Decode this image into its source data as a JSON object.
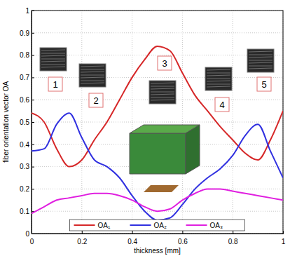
{
  "chart_data": {
    "type": "line",
    "x_label": "thickness [mm]",
    "y_label": "fiber orientation vector OA",
    "x": [
      0,
      0.05,
      0.1,
      0.15,
      0.2,
      0.25,
      0.3,
      0.35,
      0.4,
      0.45,
      0.5,
      0.55,
      0.6,
      0.65,
      0.7,
      0.75,
      0.8,
      0.85,
      0.9,
      0.95,
      1
    ],
    "series": [
      {
        "name": "OA₁",
        "color": "#d62728",
        "values": [
          0.54,
          0.5,
          0.38,
          0.3,
          0.33,
          0.42,
          0.5,
          0.6,
          0.7,
          0.78,
          0.84,
          0.82,
          0.72,
          0.62,
          0.55,
          0.48,
          0.42,
          0.36,
          0.33,
          0.42,
          0.55
        ]
      },
      {
        "name": "OA₂",
        "color": "#3030e0",
        "values": [
          0.37,
          0.38,
          0.49,
          0.54,
          0.43,
          0.33,
          0.3,
          0.25,
          0.17,
          0.1,
          0.06,
          0.07,
          0.13,
          0.2,
          0.25,
          0.29,
          0.35,
          0.44,
          0.49,
          0.37,
          0.25
        ]
      },
      {
        "name": "OA₃",
        "color": "#e020e0",
        "values": [
          0.09,
          0.12,
          0.15,
          0.16,
          0.17,
          0.18,
          0.18,
          0.17,
          0.15,
          0.12,
          0.1,
          0.11,
          0.15,
          0.18,
          0.2,
          0.2,
          0.19,
          0.18,
          0.17,
          0.16,
          0.15
        ]
      }
    ],
    "xlim": [
      0,
      1
    ],
    "xticks": [
      0,
      0.2,
      0.4,
      0.6,
      0.8,
      1
    ],
    "ylim": [
      0,
      1
    ],
    "yticks": [
      0,
      0.1,
      0.2,
      0.3,
      0.4,
      0.5,
      0.6,
      0.7,
      0.8,
      0.9,
      1
    ],
    "grid": true,
    "legend": "bottom",
    "annotations": [
      "1",
      "2",
      "3",
      "4",
      "5"
    ]
  }
}
